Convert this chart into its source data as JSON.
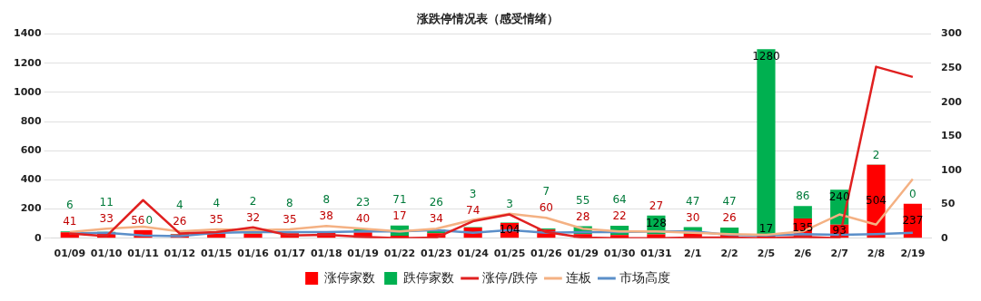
{
  "chart_data": {
    "type": "bar",
    "title": "涨跌停情况表（感受情绪）",
    "categories": [
      "01/09",
      "01/10",
      "01/11",
      "01/12",
      "01/15",
      "01/16",
      "01/17",
      "01/18",
      "01/19",
      "01/22",
      "01/23",
      "01/24",
      "01/25",
      "01/26",
      "01/29",
      "01/30",
      "01/31",
      "2/1",
      "2/2",
      "2/5",
      "2/6",
      "2/7",
      "2/8",
      "2/19"
    ],
    "stacked": true,
    "series": [
      {
        "name": "涨停家数",
        "type": "bar",
        "color": "#ff0000",
        "values": [
          41,
          33,
          56,
          26,
          35,
          32,
          35,
          38,
          40,
          17,
          34,
          74,
          104,
          60,
          28,
          22,
          27,
          30,
          26,
          17,
          135,
          93,
          504,
          237
        ],
        "value_labels": [
          "41",
          "33",
          "56",
          "26",
          "35",
          "32",
          "35",
          "38",
          "40",
          "17",
          "34",
          "74",
          "104",
          "60",
          "28",
          "22",
          "27",
          "30",
          "26",
          "17",
          "135",
          "93",
          "504",
          "237"
        ]
      },
      {
        "name": "跌停家数",
        "type": "bar",
        "color": "#00b050",
        "values": [
          6,
          11,
          0,
          4,
          4,
          2,
          8,
          8,
          23,
          71,
          26,
          3,
          3,
          7,
          55,
          64,
          128,
          47,
          47,
          1280,
          86,
          240,
          2,
          0
        ],
        "value_labels": [
          "6",
          "11",
          "0",
          "4",
          "4",
          "2",
          "8",
          "8",
          "23",
          "71",
          "26",
          "3",
          "3",
          "7",
          "55",
          "64",
          "128",
          "47",
          "47",
          "1280",
          "86",
          "240",
          "2",
          "0"
        ]
      },
      {
        "name": "涨停/跌停",
        "type": "line",
        "axis": "y2",
        "color": "#e02020",
        "values": [
          7,
          3,
          56,
          7,
          9,
          16,
          4,
          5,
          2,
          0,
          1,
          25,
          35,
          9,
          1,
          0,
          0,
          1,
          1,
          0,
          2,
          0,
          252,
          237
        ]
      },
      {
        "name": "连板",
        "type": "line",
        "axis": "y2",
        "color": "#f4b183",
        "values": [
          9,
          14,
          17,
          10,
          13,
          12,
          13,
          18,
          14,
          10,
          14,
          27,
          36,
          30,
          14,
          10,
          10,
          8,
          6,
          5,
          10,
          35,
          20,
          87
        ]
      },
      {
        "name": "市场高度",
        "type": "line",
        "axis": "y2",
        "color": "#5b8fc9",
        "values": [
          7,
          8,
          4,
          3,
          8,
          9,
          9,
          9,
          10,
          10,
          12,
          8,
          12,
          8,
          9,
          9,
          10,
          10,
          5,
          4,
          6,
          5,
          6,
          8
        ]
      }
    ],
    "ylim": [
      0,
      1400
    ],
    "yticks": [
      0,
      200,
      400,
      600,
      800,
      1000,
      1200,
      1400
    ],
    "y2lim": [
      0,
      300
    ],
    "y2ticks": [
      0,
      50,
      100,
      150,
      200,
      250,
      300
    ],
    "grid": "y",
    "legend": "bottom"
  }
}
